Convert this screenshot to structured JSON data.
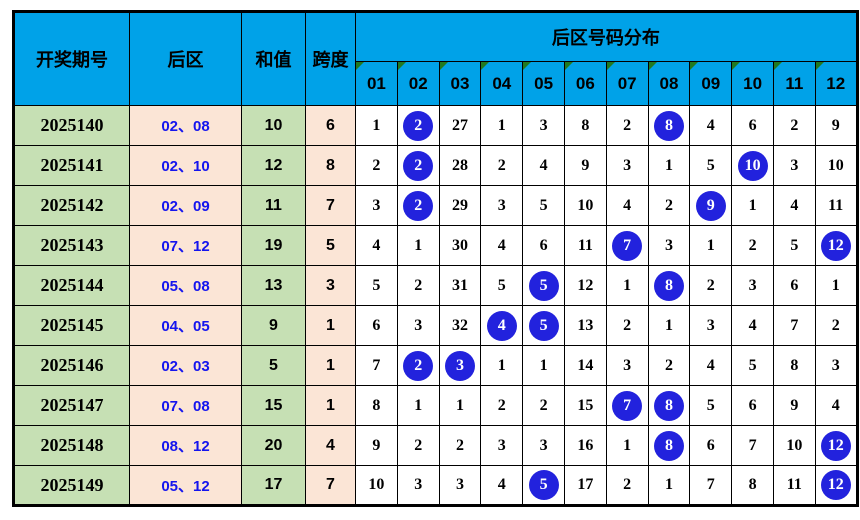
{
  "chart_data": {
    "type": "table",
    "title": "后区号码分布",
    "headers": {
      "period": "开奖期号",
      "back_zone": "后区",
      "sum": "和值",
      "span": "跨度",
      "distribution_title": "后区号码分布",
      "numbers": [
        "01",
        "02",
        "03",
        "04",
        "05",
        "06",
        "07",
        "08",
        "09",
        "10",
        "11",
        "12"
      ]
    },
    "rows": [
      {
        "period": "2025140",
        "back_zone": "02、08",
        "sum": "10",
        "span": "6",
        "ball_cols": [
          2,
          8
        ],
        "dist": [
          1,
          2,
          27,
          1,
          3,
          8,
          2,
          8,
          4,
          6,
          2,
          9
        ]
      },
      {
        "period": "2025141",
        "back_zone": "02、10",
        "sum": "12",
        "span": "8",
        "ball_cols": [
          2,
          10
        ],
        "dist": [
          2,
          2,
          28,
          2,
          4,
          9,
          3,
          1,
          5,
          10,
          3,
          10
        ]
      },
      {
        "period": "2025142",
        "back_zone": "02、09",
        "sum": "11",
        "span": "7",
        "ball_cols": [
          2,
          9
        ],
        "dist": [
          3,
          2,
          29,
          3,
          5,
          10,
          4,
          2,
          9,
          1,
          4,
          11
        ]
      },
      {
        "period": "2025143",
        "back_zone": "07、12",
        "sum": "19",
        "span": "5",
        "ball_cols": [
          7,
          12
        ],
        "dist": [
          4,
          1,
          30,
          4,
          6,
          11,
          7,
          3,
          1,
          2,
          5,
          12
        ]
      },
      {
        "period": "2025144",
        "back_zone": "05、08",
        "sum": "13",
        "span": "3",
        "ball_cols": [
          5,
          8
        ],
        "dist": [
          5,
          2,
          31,
          5,
          5,
          12,
          1,
          8,
          2,
          3,
          6,
          1
        ]
      },
      {
        "period": "2025145",
        "back_zone": "04、05",
        "sum": "9",
        "span": "1",
        "ball_cols": [
          4,
          5
        ],
        "dist": [
          6,
          3,
          32,
          4,
          5,
          13,
          2,
          1,
          3,
          4,
          7,
          2
        ]
      },
      {
        "period": "2025146",
        "back_zone": "02、03",
        "sum": "5",
        "span": "1",
        "ball_cols": [
          2,
          3
        ],
        "dist": [
          7,
          2,
          3,
          1,
          1,
          14,
          3,
          2,
          4,
          5,
          8,
          3
        ]
      },
      {
        "period": "2025147",
        "back_zone": "07、08",
        "sum": "15",
        "span": "1",
        "ball_cols": [
          7,
          8
        ],
        "dist": [
          8,
          1,
          1,
          2,
          2,
          15,
          7,
          8,
          5,
          6,
          9,
          4
        ]
      },
      {
        "period": "2025148",
        "back_zone": "08、12",
        "sum": "20",
        "span": "4",
        "ball_cols": [
          8,
          12
        ],
        "dist": [
          9,
          2,
          2,
          3,
          3,
          16,
          1,
          8,
          6,
          7,
          10,
          12
        ]
      },
      {
        "period": "2025149",
        "back_zone": "05、12",
        "sum": "17",
        "span": "7",
        "ball_cols": [
          5,
          12
        ],
        "dist": [
          10,
          3,
          3,
          4,
          5,
          17,
          2,
          1,
          7,
          8,
          11,
          12
        ]
      }
    ]
  },
  "colors": {
    "header_bg": "#00A2E8",
    "header_text": "#000000",
    "period_bg": "#C6E0B4",
    "backzone_bg": "#FBE5D6",
    "sum_bg": "#C6E0B4",
    "span_bg": "#FBE5D6",
    "cell_bg": "#FFFFFF",
    "blue_text": "#1414EE",
    "ball_bg": "#2222DD",
    "ball_text": "#FFFFFF",
    "triangle": "#217A21",
    "border": "#000000"
  }
}
